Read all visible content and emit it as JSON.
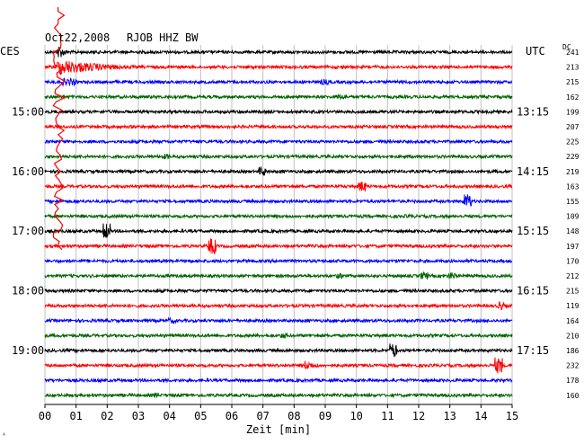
{
  "chart_data": {
    "type": "line",
    "title": "Oct22,2008",
    "station": "RJOB HHZ BW",
    "left_timezone": "CES",
    "right_timezone": "UTC",
    "dc_header": "DC",
    "xlabel": "Zeit [min]",
    "xlim": [
      0,
      15
    ],
    "x_ticks": [
      "00",
      "01",
      "02",
      "03",
      "04",
      "05",
      "06",
      "07",
      "08",
      "09",
      "10",
      "11",
      "12",
      "13",
      "14",
      "15"
    ],
    "trace_colors": [
      "#000000",
      "#ff0000",
      "#0000ff",
      "#006400"
    ],
    "left_time_labels": [
      {
        "trace": 4,
        "label": "15:00"
      },
      {
        "trace": 8,
        "label": "16:00"
      },
      {
        "trace": 12,
        "label": "17:00"
      },
      {
        "trace": 16,
        "label": "18:00"
      },
      {
        "trace": 20,
        "label": "19:00"
      }
    ],
    "right_time_labels": [
      {
        "trace": 4,
        "label": "13:15"
      },
      {
        "trace": 8,
        "label": "14:15"
      },
      {
        "trace": 12,
        "label": "15:15"
      },
      {
        "trace": 16,
        "label": "16:15"
      },
      {
        "trace": 20,
        "label": "17:15"
      }
    ],
    "dc_values": [
      "241",
      "213",
      "215",
      "162",
      "199",
      "207",
      "225",
      "229",
      "219",
      "163",
      "155",
      "109",
      "148",
      "197",
      "170",
      "212",
      "215",
      "119",
      "164",
      "210",
      "186",
      "232",
      "178",
      "160"
    ],
    "events": [
      {
        "trace": 0,
        "minute": 0.45,
        "duration": 0.6,
        "amplitude": 8
      },
      {
        "trace": 1,
        "minute": 0.45,
        "duration": 4.5,
        "amplitude": 9
      },
      {
        "trace": 2,
        "minute": 0.6,
        "duration": 0.4,
        "amplitude": 4
      },
      {
        "trace": 2,
        "minute": 8.9,
        "duration": 0.2,
        "amplitude": 3
      },
      {
        "trace": 3,
        "minute": 9.4,
        "duration": 0.3,
        "amplitude": 3
      },
      {
        "trace": 7,
        "minute": 3.8,
        "duration": 0.2,
        "amplitude": 3
      },
      {
        "trace": 8,
        "minute": 6.9,
        "duration": 0.2,
        "amplitude": 5
      },
      {
        "trace": 9,
        "minute": 10.1,
        "duration": 0.2,
        "amplitude": 6
      },
      {
        "trace": 10,
        "minute": 13.5,
        "duration": 0.2,
        "amplitude": 8
      },
      {
        "trace": 11,
        "minute": 11.6,
        "duration": 0.2,
        "amplitude": 2
      },
      {
        "trace": 12,
        "minute": 1.9,
        "duration": 0.2,
        "amplitude": 9
      },
      {
        "trace": 13,
        "minute": 5.3,
        "duration": 0.2,
        "amplitude": 9
      },
      {
        "trace": 15,
        "minute": 9.4,
        "duration": 0.2,
        "amplitude": 3
      },
      {
        "trace": 15,
        "minute": 12.1,
        "duration": 0.2,
        "amplitude": 4
      },
      {
        "trace": 15,
        "minute": 13.0,
        "duration": 0.2,
        "amplitude": 4
      },
      {
        "trace": 17,
        "minute": 14.6,
        "duration": 0.6,
        "amplitude": 6
      },
      {
        "trace": 18,
        "minute": 4.0,
        "duration": 0.2,
        "amplitude": 3
      },
      {
        "trace": 19,
        "minute": 7.6,
        "duration": 0.2,
        "amplitude": 3
      },
      {
        "trace": 20,
        "minute": 11.1,
        "duration": 0.2,
        "amplitude": 8
      },
      {
        "trace": 21,
        "minute": 8.4,
        "duration": 1.2,
        "amplitude": 5
      },
      {
        "trace": 21,
        "minute": 14.5,
        "duration": 0.2,
        "amplitude": 9
      },
      {
        "trace": 22,
        "minute": 1.7,
        "duration": 0.2,
        "amplitude": 2
      },
      {
        "trace": 23,
        "minute": 3.5,
        "duration": 0.2,
        "amplitude": 3
      }
    ],
    "large_event": {
      "minute": 0.45,
      "start_trace": 0,
      "end_trace": 13,
      "color": "#ff0000"
    }
  }
}
